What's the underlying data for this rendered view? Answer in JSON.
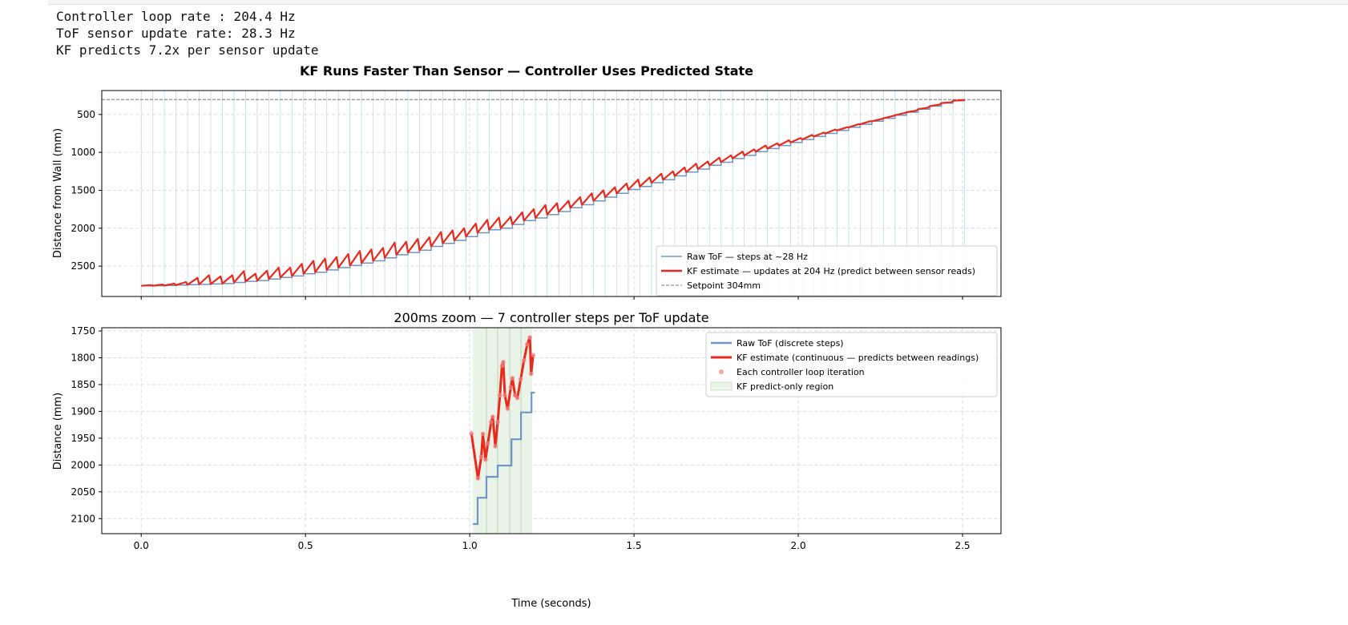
{
  "output_lines": [
    "Controller loop rate : 204.4 Hz",
    "ToF sensor update rate: 28.3 Hz",
    "KF predicts 7.2x per sensor update"
  ],
  "chart_data": [
    {
      "type": "line",
      "title": "KF Runs Faster Than Sensor — Controller Uses Predicted State",
      "xlabel": "",
      "ylabel": "Distance from Wall (mm)",
      "xlim": [
        -0.12,
        2.617
      ],
      "ylim": [
        2900,
        185
      ],
      "y_inverted": true,
      "xticks": [
        0.0,
        0.5,
        1.0,
        1.5,
        2.0,
        2.5
      ],
      "yticks": [
        500,
        1000,
        1500,
        2000,
        2500
      ],
      "grid": true,
      "legend_position": "lower-right",
      "legend": [
        "Raw ToF — steps at ~28 Hz",
        "KF estimate — updates at 204 Hz (predict between sensor reads)",
        "Setpoint 304mm"
      ],
      "sensor_update_interval_s": 0.0353,
      "raw_tof": [
        2760,
        2758,
        2755,
        2750,
        2745,
        2740,
        2735,
        2730,
        2715,
        2700,
        2690,
        2670,
        2650,
        2630,
        2600,
        2580,
        2550,
        2520,
        2490,
        2460,
        2430,
        2390,
        2350,
        2320,
        2290,
        2240,
        2200,
        2160,
        2110,
        2060,
        2020,
        2000,
        1950,
        1900,
        1865,
        1820,
        1780,
        1730,
        1690,
        1640,
        1590,
        1540,
        1490,
        1450,
        1400,
        1360,
        1310,
        1260,
        1220,
        1170,
        1130,
        1080,
        1040,
        990,
        950,
        910,
        870,
        830,
        790,
        750,
        710,
        670,
        630,
        590,
        550,
        510,
        470,
        430,
        390,
        350,
        320,
        304
      ],
      "kf_peak_before_next_read": [
        2750,
        2743,
        2730,
        2710,
        2655,
        2620,
        2635,
        2620,
        2565,
        2600,
        2560,
        2520,
        2520,
        2470,
        2430,
        2400,
        2380,
        2340,
        2300,
        2280,
        2260,
        2190,
        2180,
        2140,
        2120,
        2050,
        2030,
        2000,
        1940,
        1890,
        1860,
        1850,
        1790,
        1750,
        1695,
        1670,
        1640,
        1590,
        1540,
        1500,
        1460,
        1410,
        1360,
        1330,
        1280,
        1250,
        1200,
        1150,
        1120,
        1070,
        1040,
        990,
        960,
        910,
        880,
        840,
        810,
        770,
        740,
        700,
        670,
        630,
        590,
        560,
        520,
        480,
        450,
        410,
        370,
        340,
        310
      ],
      "setpoint": 304,
      "colors": {
        "raw": "#6f95c4",
        "kf": "#e8291c",
        "setpoint": "#777777",
        "update_lines": "#c8d6e8"
      }
    },
    {
      "type": "line",
      "title": "200ms zoom — 7 controller steps per ToF update",
      "xlabel": "Time (seconds)",
      "ylabel": "Distance (mm)",
      "xlim": [
        -0.12,
        2.617
      ],
      "ylim": [
        2128,
        1744
      ],
      "y_inverted": true,
      "xticks": [
        0.0,
        0.5,
        1.0,
        1.5,
        2.0,
        2.5
      ],
      "yticks": [
        1750,
        1800,
        1850,
        1900,
        1950,
        2000,
        2050,
        2100
      ],
      "grid": true,
      "legend_position": "upper-right",
      "legend": [
        "Raw ToF (discrete steps)",
        "KF estimate (continuous — predicts between readings)",
        "Each controller loop iteration",
        "KF predict-only region"
      ],
      "raw_tof_steps": [
        [
          1.01,
          2110
        ],
        [
          1.024,
          2061
        ],
        [
          1.051,
          2022
        ],
        [
          1.085,
          2001
        ],
        [
          1.127,
          1952
        ],
        [
          1.156,
          1902
        ],
        [
          1.188,
          1865
        ],
        [
          1.198,
          1865
        ]
      ],
      "kf_t": [
        1.005,
        1.025,
        1.035,
        1.04,
        1.048,
        1.055,
        1.065,
        1.07,
        1.078,
        1.085,
        1.092,
        1.098,
        1.102,
        1.107,
        1.115,
        1.125,
        1.13,
        1.138,
        1.145,
        1.155,
        1.165,
        1.175,
        1.183,
        1.187,
        1.193
      ],
      "kf_values": [
        1941,
        2025,
        1985,
        1942,
        1990,
        1960,
        1920,
        1910,
        1965,
        1920,
        1870,
        1815,
        1808,
        1870,
        1895,
        1855,
        1838,
        1870,
        1875,
        1840,
        1805,
        1775,
        1762,
        1830,
        1795
      ],
      "predict_region": [
        1.01,
        1.19
      ],
      "sensor_read_times": [
        1.051,
        1.085,
        1.122,
        1.156
      ],
      "colors": {
        "raw": "#6f95c4",
        "kf": "#e8291c",
        "points": "#f08080",
        "region": "#e9f3e7"
      }
    }
  ]
}
